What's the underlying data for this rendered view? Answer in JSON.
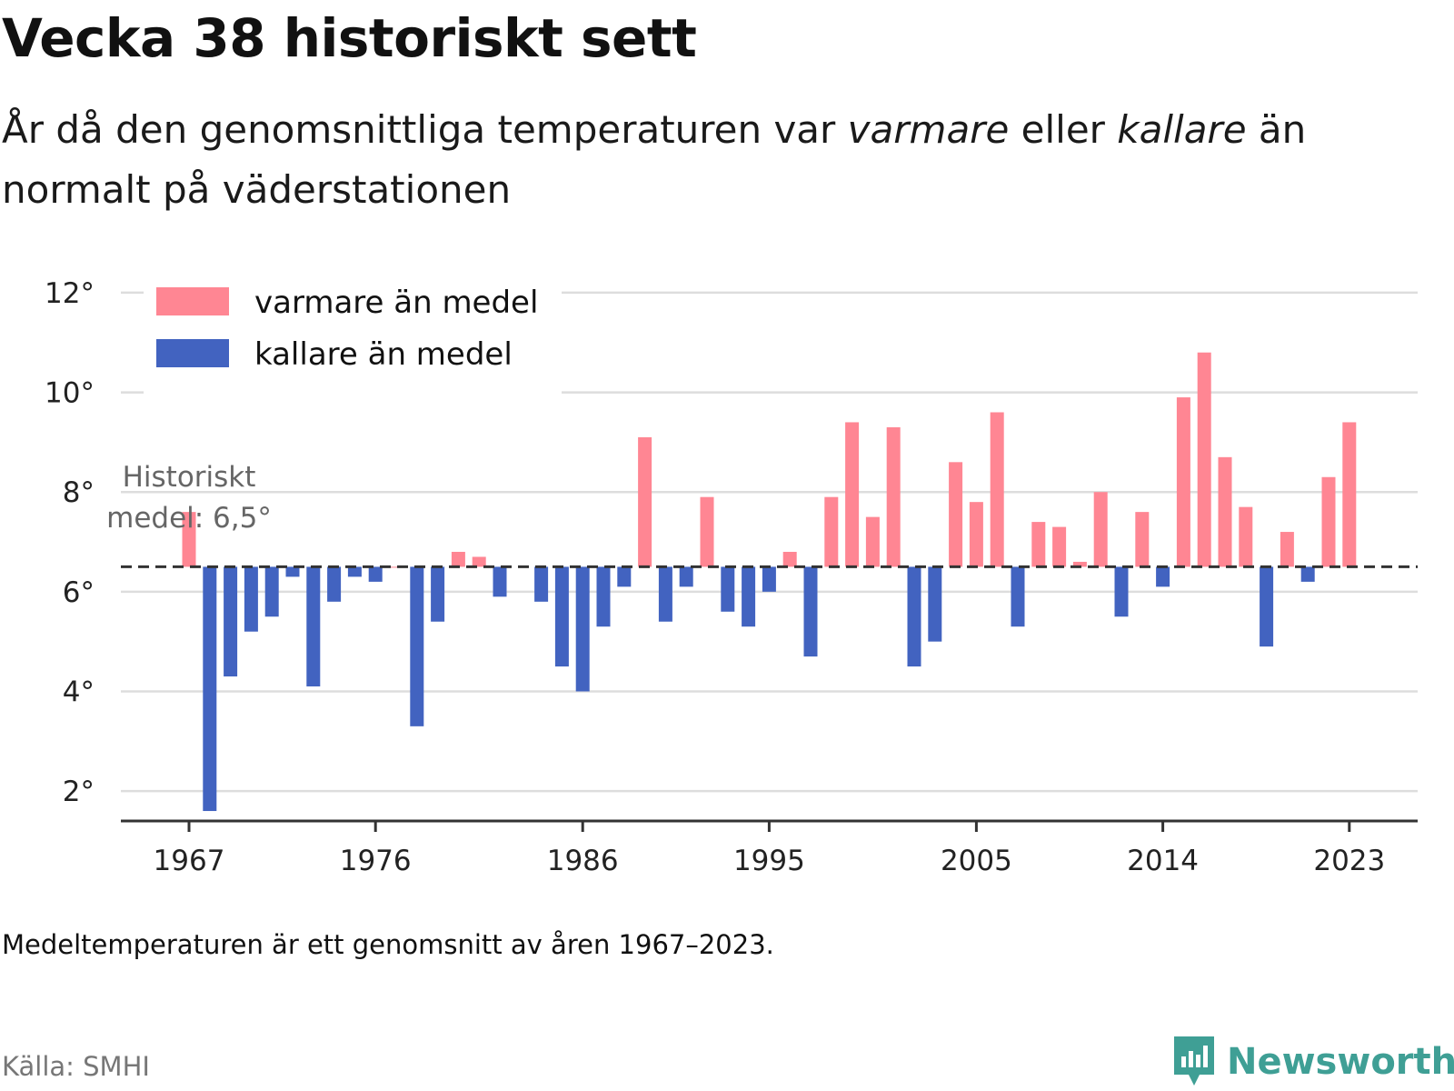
{
  "title": "Vecka 38 historiskt sett",
  "subtitle": {
    "part1": "År då den genomsnittliga temperaturen var ",
    "warm_word": "varmare",
    "part2": " eller ",
    "cold_word": "kallare",
    "part3": " än normalt på väderstationen"
  },
  "note": "Medeltemperaturen är ett genomsnitt av åren 1967–2023.",
  "source": "Källa: SMHI",
  "brand": {
    "name": "Newsworthy",
    "icon": "newsworthy-logo-icon",
    "color": "#3f9f95"
  },
  "colors": {
    "warm": "#ff8693",
    "cold": "#4263c0",
    "mean_line": "#333333",
    "grid": "#dddddd"
  },
  "chart_data": {
    "type": "bar",
    "baseline": 6.5,
    "baseline_label_line1": "Historiskt",
    "baseline_label_line2": "medel: 6,5°",
    "ylim": [
      1.4,
      12.4
    ],
    "y_ticks": [
      2,
      4,
      6,
      8,
      10,
      12
    ],
    "y_tick_labels": [
      "2°",
      "4°",
      "6°",
      "8°",
      "10°",
      "12°"
    ],
    "x_ticks": [
      1967,
      1976,
      1986,
      1995,
      2005,
      2014,
      2023
    ],
    "x_tick_labels": [
      "1967",
      "1976",
      "1986",
      "1995",
      "2005",
      "2014",
      "2023"
    ],
    "legend": [
      {
        "label": "varmare än medel",
        "color": "#ff8693"
      },
      {
        "label": "kallare än medel",
        "color": "#4263c0"
      }
    ],
    "legend_position": "top-left",
    "grid": true,
    "years": [
      1967,
      1968,
      1969,
      1970,
      1971,
      1972,
      1973,
      1974,
      1975,
      1976,
      1977,
      1978,
      1979,
      1980,
      1981,
      1982,
      1983,
      1984,
      1985,
      1986,
      1987,
      1988,
      1989,
      1990,
      1991,
      1992,
      1993,
      1994,
      1995,
      1996,
      1997,
      1998,
      1999,
      2000,
      2001,
      2002,
      2003,
      2004,
      2005,
      2006,
      2007,
      2008,
      2009,
      2010,
      2011,
      2012,
      2013,
      2014,
      2015,
      2016,
      2017,
      2018,
      2019,
      2020,
      2021,
      2022,
      2023
    ],
    "values": [
      7.6,
      1.6,
      4.3,
      5.2,
      5.5,
      6.3,
      4.1,
      5.8,
      6.3,
      6.2,
      6.5,
      3.3,
      5.4,
      6.8,
      6.7,
      5.9,
      null,
      5.8,
      4.5,
      4.0,
      5.3,
      6.1,
      9.1,
      5.4,
      6.1,
      7.9,
      5.6,
      5.3,
      6.0,
      6.8,
      4.7,
      7.9,
      9.4,
      7.5,
      9.3,
      4.5,
      5.0,
      8.6,
      7.8,
      9.6,
      5.3,
      7.4,
      7.3,
      6.6,
      8.0,
      5.5,
      7.6,
      6.1,
      9.9,
      10.8,
      8.7,
      7.7,
      4.9,
      7.2,
      6.2,
      8.3,
      9.4
    ]
  }
}
